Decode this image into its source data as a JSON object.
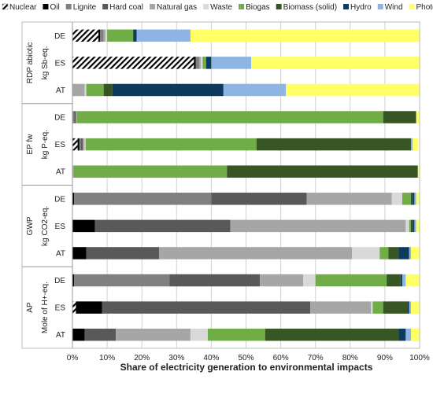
{
  "chart_data": {
    "type": "bar",
    "orientation": "horizontal",
    "stacked": true,
    "percent_stacked": true,
    "xlabel": "Share of electricity generation to environmental impacts",
    "xlim": [
      0,
      100
    ],
    "x_ticks": [
      "0%",
      "10%",
      "20%",
      "30%",
      "40%",
      "50%",
      "60%",
      "70%",
      "80%",
      "90%",
      "100%"
    ],
    "grid": "vertical",
    "legend_position": "top",
    "technologies": [
      {
        "name": "Nuclear",
        "color": "#ffffff",
        "pattern": "hatch"
      },
      {
        "name": "Oil",
        "color": "#000000"
      },
      {
        "name": "Lignite",
        "color": "#808080"
      },
      {
        "name": "Hard coal",
        "color": "#595959"
      },
      {
        "name": "Natural gas",
        "color": "#a6a6a6"
      },
      {
        "name": "Waste",
        "color": "#d9d9d9"
      },
      {
        "name": "Biogas",
        "color": "#70ad47"
      },
      {
        "name": "Biomass (solid)",
        "color": "#375623"
      },
      {
        "name": "Hydro",
        "color": "#0d3b5e"
      },
      {
        "name": "Wind",
        "color": "#8db4e2"
      },
      {
        "name": "Photovoltaics",
        "color": "#ffff66"
      }
    ],
    "groups": [
      {
        "label": "RDP abiotic",
        "unit": "kg Sb-eq.",
        "bars": [
          {
            "country": "DE",
            "values": [
              7.5,
              0.5,
              1.0,
              0.0,
              0.5,
              0.5,
              7.5,
              0.0,
              1.0,
              15.5,
              66.0
            ]
          },
          {
            "country": "ES",
            "values": [
              35.0,
              0.5,
              1.0,
              0.0,
              0.5,
              0.5,
              1.0,
              0.0,
              1.5,
              11.5,
              48.5
            ]
          },
          {
            "country": "AT",
            "values": [
              0.0,
              0.0,
              0.0,
              0.0,
              3.5,
              0.5,
              5.0,
              2.5,
              32.0,
              18.0,
              38.5
            ]
          }
        ]
      },
      {
        "label": "EP fw",
        "unit": "kg P-eq.",
        "bars": [
          {
            "country": "DE",
            "values": [
              0.0,
              0.0,
              0.5,
              0.5,
              0.3,
              0.0,
              88.2,
              9.5,
              0.0,
              0.0,
              1.0
            ]
          },
          {
            "country": "ES",
            "values": [
              1.5,
              0.5,
              0.5,
              0.5,
              0.5,
              0.3,
              49.2,
              44.5,
              0.0,
              0.5,
              1.5
            ]
          },
          {
            "country": "AT",
            "values": [
              0.0,
              0.0,
              0.0,
              0.0,
              0.3,
              0.0,
              44.2,
              55.0,
              0.0,
              0.0,
              0.5
            ]
          }
        ]
      },
      {
        "label": "GWP",
        "unit": "kg CO2-eq.",
        "bars": [
          {
            "country": "DE",
            "values": [
              0.0,
              0.5,
              39.5,
              27.5,
              24.5,
              3.0,
              2.5,
              0.5,
              0.5,
              0.5,
              1.0
            ]
          },
          {
            "country": "ES",
            "values": [
              0.0,
              6.5,
              0.0,
              39.0,
              50.5,
              1.0,
              0.5,
              0.5,
              0.5,
              0.5,
              1.0
            ]
          },
          {
            "country": "AT",
            "values": [
              0.0,
              4.0,
              0.0,
              21.0,
              55.5,
              8.0,
              2.5,
              3.0,
              3.0,
              0.5,
              2.5
            ]
          }
        ]
      },
      {
        "label": "AP",
        "unit": "Mole of H+-eq.",
        "bars": [
          {
            "country": "DE",
            "values": [
              0.0,
              0.5,
              27.5,
              26.0,
              12.5,
              3.5,
              20.5,
              4.0,
              0.5,
              1.0,
              4.0
            ]
          },
          {
            "country": "ES",
            "values": [
              1.0,
              7.5,
              0.0,
              60.0,
              17.5,
              0.5,
              3.0,
              7.0,
              0.5,
              0.5,
              2.5
            ]
          },
          {
            "country": "AT",
            "values": [
              0.0,
              3.5,
              0.0,
              9.0,
              21.5,
              5.0,
              16.5,
              38.5,
              2.0,
              1.5,
              2.5
            ]
          }
        ]
      }
    ]
  }
}
